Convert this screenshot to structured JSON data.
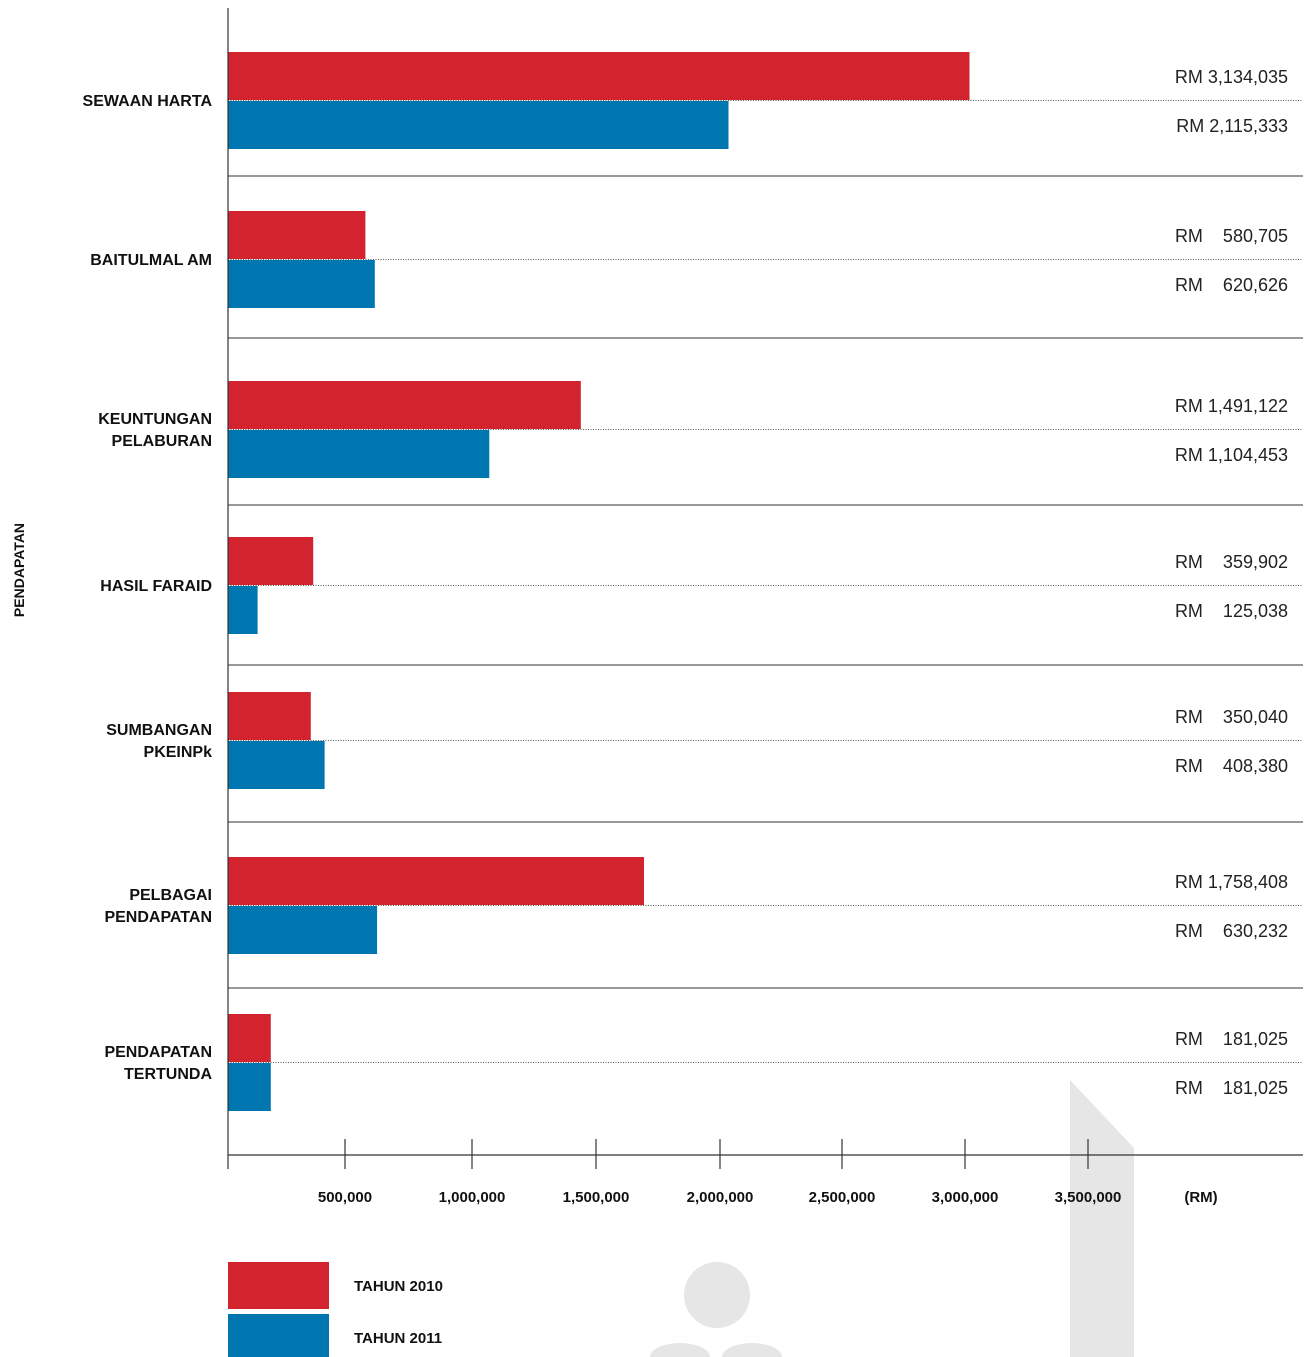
{
  "chart_data": {
    "type": "bar",
    "orientation": "horizontal",
    "ylabel": "PENDAPATAN",
    "xlabel": "(RM)",
    "xlim": [
      0,
      4500000
    ],
    "x_ticks": [
      "500,000",
      "1,000,000",
      "1,500,000",
      "2,000,000",
      "2,500,000",
      "3,000,000",
      "3,500,000"
    ],
    "categories": [
      {
        "lines": [
          "SEWAAN HARTA"
        ]
      },
      {
        "lines": [
          "BAITULMAL AM"
        ]
      },
      {
        "lines": [
          "KEUNTUNGAN",
          "PELABURAN"
        ]
      },
      {
        "lines": [
          "HASIL FARAID"
        ]
      },
      {
        "lines": [
          "SUMBANGAN",
          "PKEINPk"
        ]
      },
      {
        "lines": [
          "PELBAGAI",
          "PENDAPATAN"
        ]
      },
      {
        "lines": [
          "PENDAPATAN",
          "TERTUNDA"
        ]
      }
    ],
    "series": [
      {
        "name": "TAHUN 2010",
        "color": "#d2232e",
        "values": [
          3134035,
          580705,
          1491122,
          359902,
          350040,
          1758408,
          181025
        ],
        "value_labels": [
          "RM 3,134,035",
          "RM    580,705",
          "RM 1,491,122",
          "RM    359,902",
          "RM    350,040",
          "RM 1,758,408",
          "RM    181,025"
        ]
      },
      {
        "name": "TAHUN 2011",
        "color": "#0076b0",
        "values": [
          2115333,
          620626,
          1104453,
          125038,
          408380,
          630232,
          181025
        ],
        "value_labels": [
          "RM 2,115,333",
          "RM    620,626",
          "RM 1,104,453",
          "RM    125,038",
          "RM    408,380",
          "RM    630,232",
          "RM    181,025"
        ]
      }
    ],
    "legend": {
      "position": "bottom-left"
    },
    "grid": false
  }
}
